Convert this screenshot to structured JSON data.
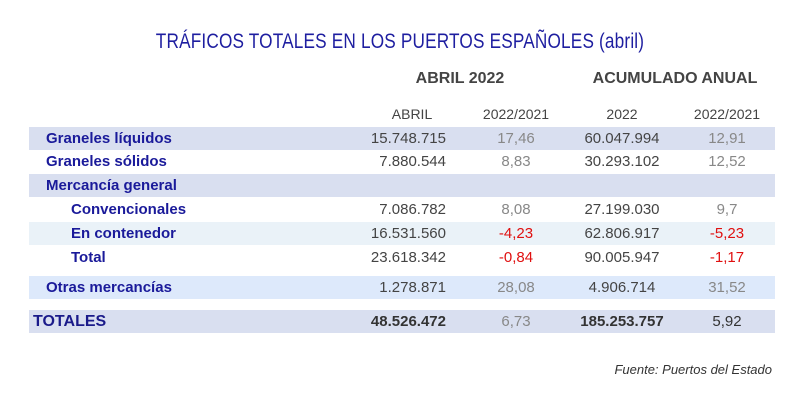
{
  "title": "TRÁFICOS TOTALES EN LOS PUERTOS ESPAÑOLES (abril)",
  "groups": [
    "ABRIL 2022",
    "ACUMULADO ANUAL"
  ],
  "subheaders": [
    "ABRIL",
    "2022/2021",
    "2022",
    "2022/2021"
  ],
  "rows": [
    {
      "label": "Graneles líquidos",
      "abril": "15.748.715",
      "var_mes": "17,46",
      "acum": "60.047.994",
      "var_acum": "12,91"
    },
    {
      "label": "Graneles sólidos",
      "abril": "7.880.544",
      "var_mes": "8,83",
      "acum": "30.293.102",
      "var_acum": "12,52"
    },
    {
      "label": "Mercancía general",
      "abril": "",
      "var_mes": "",
      "acum": "",
      "var_acum": ""
    },
    {
      "label": "Convencionales",
      "abril": "7.086.782",
      "var_mes": "8,08",
      "acum": "27.199.030",
      "var_acum": "9,7"
    },
    {
      "label": "En contenedor",
      "abril": "16.531.560",
      "var_mes": "-4,23",
      "acum": "62.806.917",
      "var_acum": "-5,23"
    },
    {
      "label": "Total",
      "abril": "23.618.342",
      "var_mes": "-0,84",
      "acum": "90.005.947",
      "var_acum": "-1,17"
    },
    {
      "label": "Otras mercancías",
      "abril": "1.278.871",
      "var_mes": "28,08",
      "acum": "4.906.714",
      "var_acum": "31,52"
    },
    {
      "label": "TOTALES",
      "abril": "48.526.472",
      "var_mes": "6,73",
      "acum": "185.253.757",
      "var_acum": "5,92"
    }
  ],
  "colors": {
    "title": "#1e1ea0",
    "negative": "#e01010",
    "row_shade": "#d9dff0",
    "row_light": "#eaf2f8",
    "row_blue": "#dde9fb"
  },
  "source": "Fuente: Puertos del Estado"
}
